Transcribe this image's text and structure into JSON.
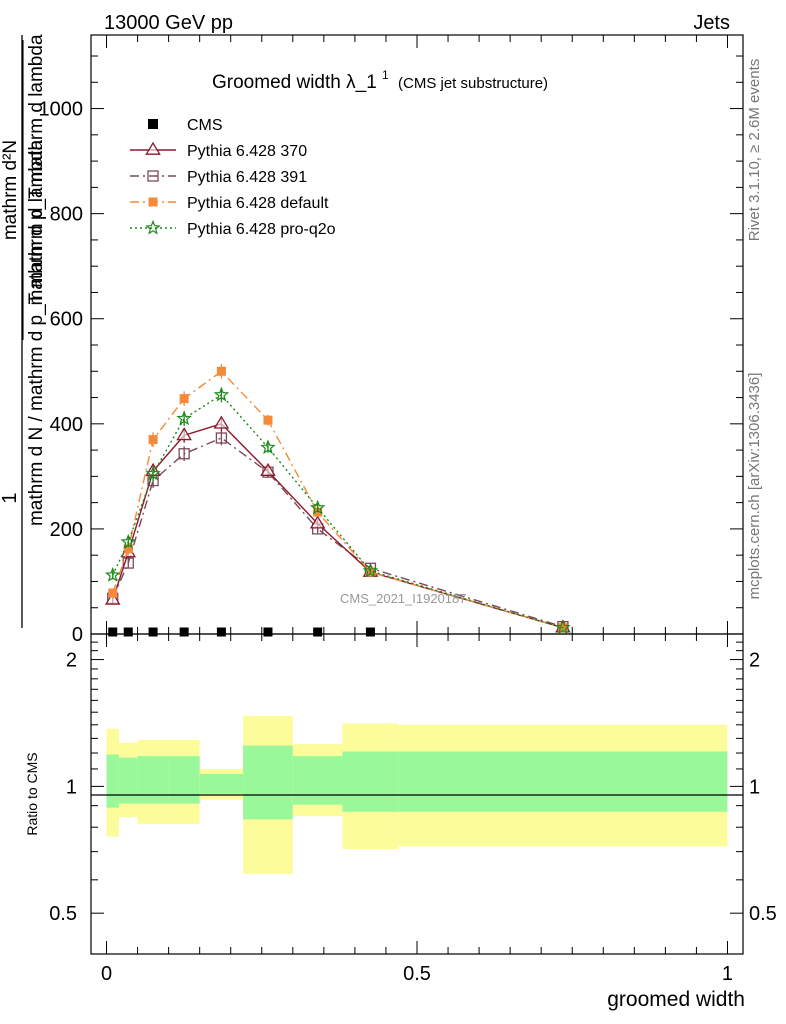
{
  "header": {
    "left": "13000 GeV pp",
    "right": "Jets"
  },
  "side_labels": {
    "rivet": "Rivet 3.1.10, ≥ 2.6M events",
    "mcplots": "mcplots.cern.ch [arXiv:1306.3436]"
  },
  "watermark": "CMS_2021_I1920187",
  "chart_data": [
    {
      "type": "line",
      "title_main": "Groomed width",
      "title_lambda": "λ_1",
      "title_sup": "1",
      "title_sub": "(CMS jet substructure)",
      "xlabel": "groomed width",
      "ylabel_numer": "1",
      "ylabel_denom": "mathrm d N / mathrm d p_T mathrm d lambda",
      "ylabel_right_top": "mathrm d²N",
      "ylabel_right_bottom": "mathrm d p_T mathrm d lambda",
      "xlim": [
        -0.025,
        1.025
      ],
      "ylim": [
        0,
        1140
      ],
      "grid": false,
      "legend_position": "top-left",
      "x_ticks": [
        0,
        0.5,
        1
      ],
      "x_tick_labels": [
        "0",
        "0.5",
        "1"
      ],
      "y_ticks": [
        0,
        200,
        400,
        600,
        800,
        1000
      ],
      "y_tick_labels": [
        "0",
        "200",
        "400",
        "600",
        "800",
        "1000"
      ],
      "bin_edges": [
        0,
        0.02,
        0.05,
        0.1,
        0.15,
        0.22,
        0.3,
        0.38,
        0.47,
        1.0
      ],
      "x": [
        0.01,
        0.035,
        0.075,
        0.125,
        0.185,
        0.26,
        0.34,
        0.425,
        0.735
      ],
      "series": [
        {
          "name": "CMS",
          "color": "#000000",
          "marker": "square",
          "dash": "none",
          "values": [
            0,
            0,
            0,
            0,
            0,
            0,
            0,
            0,
            0
          ],
          "errors": [
            0,
            0,
            0,
            0,
            0,
            0,
            0,
            0,
            0
          ]
        },
        {
          "name": "Pythia 6.428 370",
          "color": "#8b1a2b",
          "marker": "triangle",
          "dash": "solid",
          "values": [
            65,
            155,
            310,
            378,
            400,
            310,
            210,
            118,
            12
          ],
          "errors": [
            8,
            10,
            14,
            14,
            14,
            10,
            8,
            5,
            2
          ]
        },
        {
          "name": "Pythia 6.428 391",
          "color": "#7a4a5a",
          "marker": "square-open",
          "dash": "dashdot",
          "values": [
            68,
            135,
            292,
            343,
            373,
            308,
            200,
            125,
            14
          ],
          "errors": [
            8,
            10,
            14,
            14,
            14,
            10,
            8,
            5,
            2
          ]
        },
        {
          "name": "Pythia 6.428 default",
          "color": "#f58a3a",
          "marker": "square-filled",
          "dash": "dashdot",
          "values": [
            78,
            162,
            370,
            448,
            500,
            407,
            232,
            118,
            12
          ],
          "errors": [
            8,
            10,
            14,
            14,
            14,
            10,
            8,
            5,
            2
          ]
        },
        {
          "name": "Pythia 6.428 pro-q2o",
          "color": "#1a8a1a",
          "marker": "star",
          "dash": "dotted",
          "values": [
            112,
            175,
            305,
            410,
            455,
            355,
            240,
            120,
            12
          ],
          "errors": [
            8,
            10,
            14,
            14,
            14,
            10,
            8,
            5,
            2
          ]
        }
      ],
      "cms_points_x": [
        0.01,
        0.035,
        0.075,
        0.125,
        0.185,
        0.26,
        0.34,
        0.425
      ]
    },
    {
      "type": "area",
      "ylabel": "Ratio to CMS",
      "log_scale_y": true,
      "ylim": [
        0.4,
        2.3
      ],
      "y_ticks": [
        0.5,
        1,
        2
      ],
      "y_tick_labels": [
        "0.5",
        "1",
        "2"
      ],
      "x_tick_labels": [
        "0",
        "0.5",
        "1"
      ],
      "reference_line": 1,
      "bands": {
        "bin_edges": [
          0,
          0.02,
          0.05,
          0.1,
          0.15,
          0.22,
          0.3,
          0.38,
          0.47,
          1.0
        ],
        "inner_color": "#99f99a",
        "outer_color": "#fcfc9a",
        "inner_low": [
          0.89,
          0.91,
          0.91,
          0.91,
          0.96,
          0.835,
          0.905,
          0.87,
          0.87
        ],
        "inner_high": [
          1.19,
          1.17,
          1.18,
          1.18,
          1.07,
          1.25,
          1.18,
          1.21,
          1.21
        ],
        "outer_low": [
          0.76,
          0.845,
          0.815,
          0.815,
          0.93,
          0.62,
          0.85,
          0.71,
          0.72
        ],
        "outer_high": [
          1.37,
          1.27,
          1.29,
          1.29,
          1.1,
          1.47,
          1.26,
          1.41,
          1.4
        ]
      }
    }
  ]
}
